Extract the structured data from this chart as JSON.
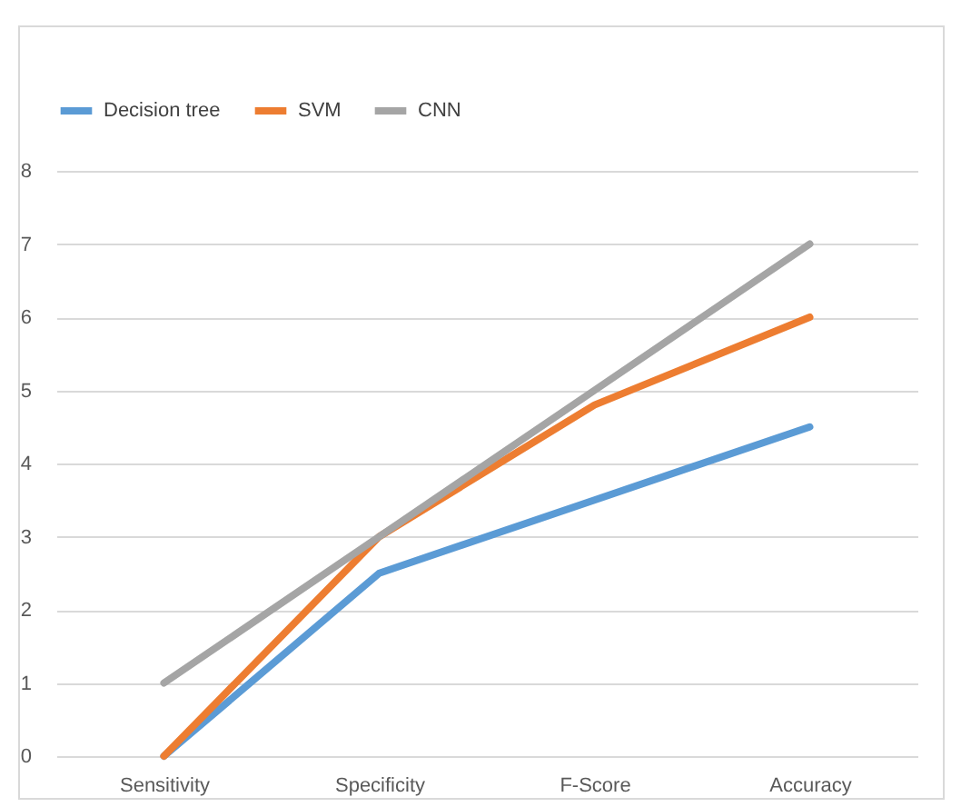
{
  "chart_data": {
    "type": "line",
    "categories": [
      "Sensitivity",
      "Specificity",
      "F-Score",
      "Accuracy"
    ],
    "series": [
      {
        "name": "Decision tree",
        "color": "#5b9bd5",
        "values": [
          0,
          2.5,
          3.5,
          4.5
        ]
      },
      {
        "name": "SVM",
        "color": "#ed7d31",
        "values": [
          0,
          3,
          4.8,
          6
        ]
      },
      {
        "name": "CNN",
        "color": "#a5a5a5",
        "values": [
          1,
          3,
          5,
          7
        ]
      }
    ],
    "ylim": [
      0,
      8
    ],
    "yticks": [
      0,
      1,
      2,
      3,
      4,
      5,
      6,
      7,
      8
    ],
    "grid": "y",
    "legend": "top",
    "marker": "none",
    "line_style": "solid"
  }
}
